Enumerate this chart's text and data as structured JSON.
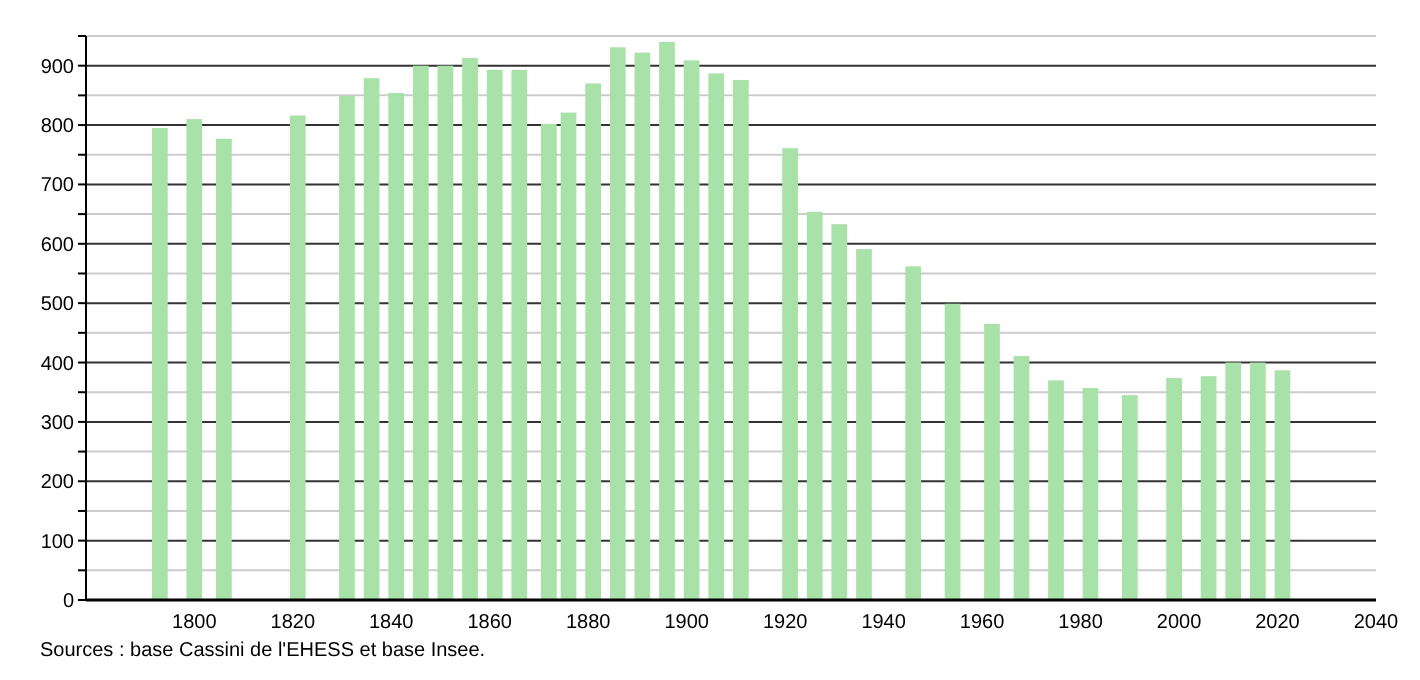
{
  "chart_data": {
    "type": "bar",
    "x": [
      1793,
      1800,
      1806,
      1821,
      1831,
      1836,
      1841,
      1846,
      1851,
      1856,
      1861,
      1866,
      1872,
      1876,
      1881,
      1886,
      1891,
      1896,
      1901,
      1906,
      1911,
      1921,
      1926,
      1931,
      1936,
      1946,
      1954,
      1962,
      1968,
      1975,
      1982,
      1990,
      1999,
      2006,
      2011,
      2016,
      2021
    ],
    "values": [
      795,
      810,
      777,
      816,
      849,
      879,
      854,
      900,
      900,
      913,
      893,
      893,
      802,
      821,
      870,
      931,
      922,
      940,
      909,
      887,
      876,
      761,
      654,
      633,
      591,
      562,
      499,
      465,
      411,
      370,
      357,
      345,
      374,
      377,
      400,
      400,
      387
    ],
    "color": "#a8e2a8",
    "xlim": [
      1778,
      2040
    ],
    "xticks": [
      1800,
      1820,
      1840,
      1860,
      1880,
      1900,
      1920,
      1940,
      1960,
      1980,
      2000,
      2020,
      2040
    ],
    "ylim": [
      0,
      950
    ],
    "yticks": [
      0,
      {
        "value": 50,
        "label": null
      },
      100,
      {
        "value": 150,
        "label": null
      },
      200,
      {
        "value": 250,
        "label": null
      },
      300,
      {
        "value": 350,
        "label": null
      },
      400,
      {
        "value": 450,
        "label": null
      },
      500,
      {
        "value": 550,
        "label": null
      },
      600,
      {
        "value": 650,
        "label": null
      },
      700,
      {
        "value": 750,
        "label": null
      },
      800,
      {
        "value": 850,
        "label": null
      },
      900,
      {
        "value": 950,
        "label": null
      }
    ],
    "grid": "y",
    "annotations": [
      "Sources : base Cassini de l'EHESS et base Insee."
    ]
  }
}
